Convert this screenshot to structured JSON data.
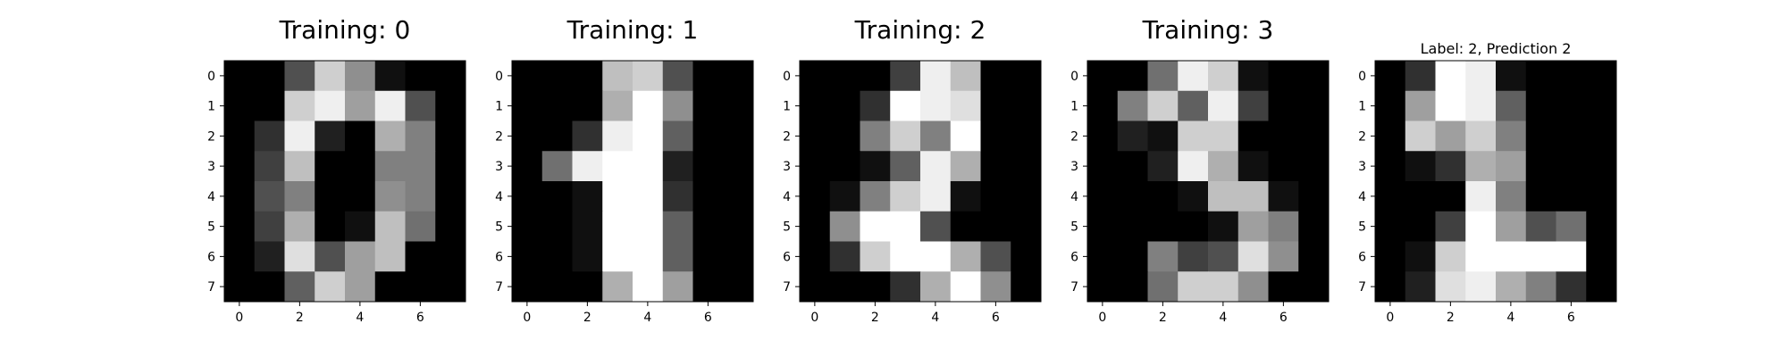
{
  "chart_data": [
    {
      "type": "heatmap",
      "title": "Training: 0",
      "colormap": "gray",
      "vmin": 0,
      "vmax": 16,
      "xticks": [
        0,
        2,
        4,
        6
      ],
      "yticks": [
        0,
        1,
        2,
        3,
        4,
        5,
        6,
        7
      ],
      "values": [
        [
          0,
          0,
          5,
          13,
          9,
          1,
          0,
          0
        ],
        [
          0,
          0,
          13,
          15,
          10,
          15,
          5,
          0
        ],
        [
          0,
          3,
          15,
          2,
          0,
          11,
          8,
          0
        ],
        [
          0,
          4,
          12,
          0,
          0,
          8,
          8,
          0
        ],
        [
          0,
          5,
          8,
          0,
          0,
          9,
          8,
          0
        ],
        [
          0,
          4,
          11,
          0,
          1,
          12,
          7,
          0
        ],
        [
          0,
          2,
          14,
          5,
          10,
          12,
          0,
          0
        ],
        [
          0,
          0,
          6,
          13,
          10,
          0,
          0,
          0
        ]
      ]
    },
    {
      "type": "heatmap",
      "title": "Training: 1",
      "colormap": "gray",
      "vmin": 0,
      "vmax": 16,
      "xticks": [
        0,
        2,
        4,
        6
      ],
      "yticks": [
        0,
        1,
        2,
        3,
        4,
        5,
        6,
        7
      ],
      "values": [
        [
          0,
          0,
          0,
          12,
          13,
          5,
          0,
          0
        ],
        [
          0,
          0,
          0,
          11,
          16,
          9,
          0,
          0
        ],
        [
          0,
          0,
          3,
          15,
          16,
          6,
          0,
          0
        ],
        [
          0,
          7,
          15,
          16,
          16,
          2,
          0,
          0
        ],
        [
          0,
          0,
          1,
          16,
          16,
          3,
          0,
          0
        ],
        [
          0,
          0,
          1,
          16,
          16,
          6,
          0,
          0
        ],
        [
          0,
          0,
          1,
          16,
          16,
          6,
          0,
          0
        ],
        [
          0,
          0,
          0,
          11,
          16,
          10,
          0,
          0
        ]
      ]
    },
    {
      "type": "heatmap",
      "title": "Training: 2",
      "colormap": "gray",
      "vmin": 0,
      "vmax": 16,
      "xticks": [
        0,
        2,
        4,
        6
      ],
      "yticks": [
        0,
        1,
        2,
        3,
        4,
        5,
        6,
        7
      ],
      "values": [
        [
          0,
          0,
          0,
          4,
          15,
          12,
          0,
          0
        ],
        [
          0,
          0,
          3,
          16,
          15,
          14,
          0,
          0
        ],
        [
          0,
          0,
          8,
          13,
          8,
          16,
          0,
          0
        ],
        [
          0,
          0,
          1,
          6,
          15,
          11,
          0,
          0
        ],
        [
          0,
          1,
          8,
          13,
          15,
          1,
          0,
          0
        ],
        [
          0,
          9,
          16,
          16,
          5,
          0,
          0,
          0
        ],
        [
          0,
          3,
          13,
          16,
          16,
          11,
          5,
          0
        ],
        [
          0,
          0,
          0,
          3,
          11,
          16,
          9,
          0
        ]
      ]
    },
    {
      "type": "heatmap",
      "title": "Training: 3",
      "colormap": "gray",
      "vmin": 0,
      "vmax": 16,
      "xticks": [
        0,
        2,
        4,
        6
      ],
      "yticks": [
        0,
        1,
        2,
        3,
        4,
        5,
        6,
        7
      ],
      "values": [
        [
          0,
          0,
          7,
          15,
          13,
          1,
          0,
          0
        ],
        [
          0,
          8,
          13,
          6,
          15,
          4,
          0,
          0
        ],
        [
          0,
          2,
          1,
          13,
          13,
          0,
          0,
          0
        ],
        [
          0,
          0,
          2,
          15,
          11,
          1,
          0,
          0
        ],
        [
          0,
          0,
          0,
          1,
          12,
          12,
          1,
          0
        ],
        [
          0,
          0,
          0,
          0,
          1,
          10,
          8,
          0
        ],
        [
          0,
          0,
          8,
          4,
          5,
          14,
          9,
          0
        ],
        [
          0,
          0,
          7,
          13,
          13,
          9,
          0,
          0
        ]
      ]
    },
    {
      "type": "heatmap",
      "title": "Label: 2, Prediction 2",
      "colormap": "gray",
      "vmin": 0,
      "vmax": 16,
      "xticks": [
        0,
        2,
        4,
        6
      ],
      "yticks": [
        0,
        1,
        2,
        3,
        4,
        5,
        6,
        7
      ],
      "values": [
        [
          0,
          3,
          16,
          15,
          1,
          0,
          0,
          0
        ],
        [
          0,
          10,
          16,
          15,
          6,
          0,
          0,
          0
        ],
        [
          0,
          13,
          10,
          13,
          8,
          0,
          0,
          0
        ],
        [
          0,
          1,
          3,
          11,
          10,
          0,
          0,
          0
        ],
        [
          0,
          0,
          0,
          15,
          8,
          0,
          0,
          0
        ],
        [
          0,
          0,
          4,
          16,
          10,
          5,
          7,
          0
        ],
        [
          0,
          1,
          13,
          16,
          16,
          16,
          16,
          0
        ],
        [
          0,
          2,
          14,
          15,
          11,
          8,
          3,
          0
        ]
      ]
    }
  ]
}
